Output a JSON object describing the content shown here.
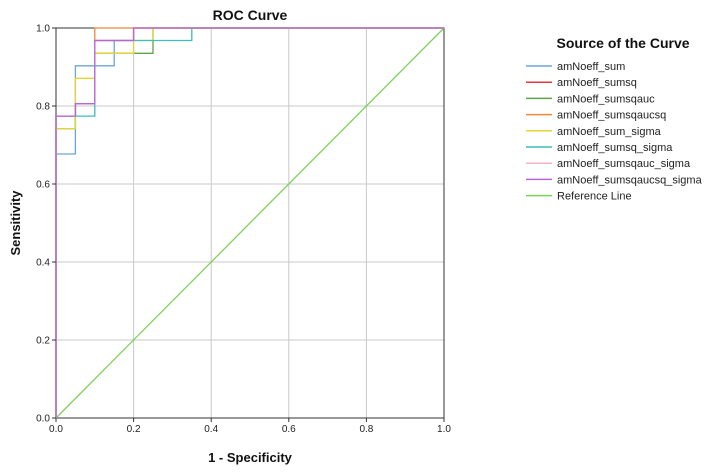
{
  "chart_data": {
    "type": "line",
    "title": "ROC Curve",
    "xlabel": "1 - Specificity",
    "ylabel": "Sensitivity",
    "xlim": [
      0,
      1
    ],
    "ylim": [
      0,
      1
    ],
    "x_ticks": [
      "0.0",
      "0.2",
      "0.4",
      "0.6",
      "0.8",
      "1.0"
    ],
    "y_ticks": [
      "0.0",
      "0.2",
      "0.4",
      "0.6",
      "0.8",
      "1.0"
    ],
    "grid": true,
    "legend_title": "Source of the Curve",
    "legend_position": "right",
    "series": [
      {
        "name": "amNoeff_sum",
        "color": "#6aa6d8",
        "points": [
          [
            0,
            0
          ],
          [
            0,
            0.677
          ],
          [
            0.05,
            0.677
          ],
          [
            0.05,
            0.903
          ],
          [
            0.15,
            0.903
          ],
          [
            0.15,
            0.968
          ],
          [
            0.2,
            0.968
          ],
          [
            0.2,
            1
          ],
          [
            1,
            1
          ]
        ]
      },
      {
        "name": "amNoeff_sumsq",
        "color": "#e0383f",
        "points": [
          [
            0,
            0
          ],
          [
            0,
            0.774
          ],
          [
            0.05,
            0.774
          ],
          [
            0.05,
            0.806
          ],
          [
            0.1,
            0.806
          ],
          [
            0.1,
            0.968
          ],
          [
            0.2,
            0.968
          ],
          [
            0.2,
            1
          ],
          [
            1,
            1
          ]
        ]
      },
      {
        "name": "amNoeff_sumsqauc",
        "color": "#5fa34a",
        "points": [
          [
            0,
            0
          ],
          [
            0,
            0.742
          ],
          [
            0.05,
            0.742
          ],
          [
            0.05,
            0.806
          ],
          [
            0.1,
            0.806
          ],
          [
            0.1,
            0.935
          ],
          [
            0.25,
            0.935
          ],
          [
            0.25,
            1
          ],
          [
            1,
            1
          ]
        ]
      },
      {
        "name": "amNoeff_sumsqaucsq",
        "color": "#f0883a",
        "points": [
          [
            0,
            0
          ],
          [
            0,
            0.774
          ],
          [
            0.05,
            0.774
          ],
          [
            0.05,
            0.806
          ],
          [
            0.1,
            0.806
          ],
          [
            0.1,
            1
          ],
          [
            1,
            1
          ]
        ]
      },
      {
        "name": "amNoeff_sum_sigma",
        "color": "#e6d436",
        "points": [
          [
            0,
            0
          ],
          [
            0,
            0.742
          ],
          [
            0.05,
            0.742
          ],
          [
            0.05,
            0.871
          ],
          [
            0.1,
            0.871
          ],
          [
            0.1,
            0.935
          ],
          [
            0.2,
            0.935
          ],
          [
            0.2,
            0.968
          ],
          [
            0.25,
            0.968
          ],
          [
            0.25,
            1
          ],
          [
            1,
            1
          ]
        ]
      },
      {
        "name": "amNoeff_sumsq_sigma",
        "color": "#3fbcbc",
        "points": [
          [
            0,
            0
          ],
          [
            0,
            0.774
          ],
          [
            0.1,
            0.774
          ],
          [
            0.1,
            0.968
          ],
          [
            0.35,
            0.968
          ],
          [
            0.35,
            1
          ],
          [
            1,
            1
          ]
        ]
      },
      {
        "name": "amNoeff_sumsqauc_sigma",
        "color": "#f7b3c8",
        "points": [
          [
            0,
            0
          ],
          [
            0,
            0.774
          ],
          [
            0.05,
            0.774
          ],
          [
            0.05,
            0.806
          ],
          [
            0.1,
            0.806
          ],
          [
            0.1,
            0.968
          ],
          [
            0.2,
            0.968
          ],
          [
            0.2,
            1
          ],
          [
            1,
            1
          ]
        ]
      },
      {
        "name": "amNoeff_sumsqaucsq_sigma",
        "color": "#b766d6",
        "points": [
          [
            0,
            0
          ],
          [
            0,
            0.774
          ],
          [
            0.05,
            0.774
          ],
          [
            0.05,
            0.806
          ],
          [
            0.1,
            0.806
          ],
          [
            0.1,
            0.968
          ],
          [
            0.2,
            0.968
          ],
          [
            0.2,
            1
          ],
          [
            1,
            1
          ]
        ]
      },
      {
        "name": "Reference Line",
        "color": "#7cd35a",
        "points": [
          [
            0,
            0
          ],
          [
            1,
            1
          ]
        ]
      }
    ]
  }
}
